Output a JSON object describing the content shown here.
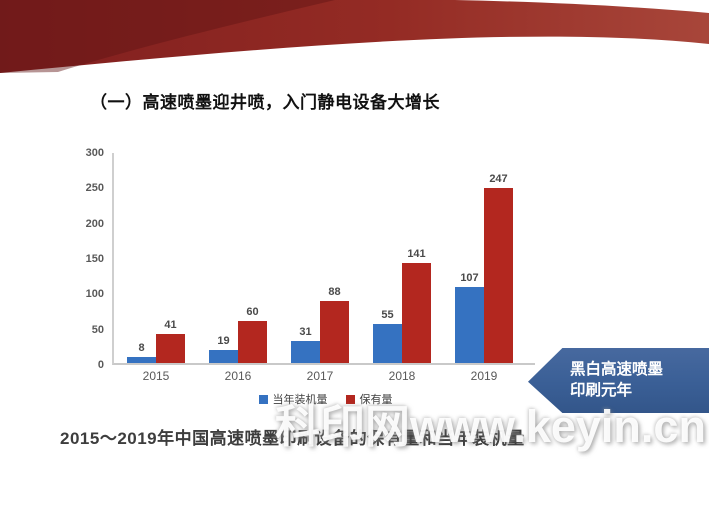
{
  "slide": {
    "title": "（一）高速喷墨迎井喷，入门静电设备大增长",
    "caption": "2015～2019年中国高速喷墨印刷设备的保有量和当年装机量",
    "watermark": "科印网www.keyin.cn",
    "banner": {
      "line1": "黑白高速喷墨",
      "line2": "印刷元年",
      "color": "#3a5f96"
    },
    "colors": {
      "header_red_dark": "#7e1e1e",
      "header_red_light": "#a43f32",
      "axis_gray": "#c9c9c9",
      "label_gray": "#595959"
    }
  },
  "chart_data": {
    "type": "bar",
    "categories": [
      "2015",
      "2016",
      "2017",
      "2018",
      "2019"
    ],
    "series": [
      {
        "name": "当年装机量",
        "color": "#3572c1",
        "values": [
          8,
          19,
          31,
          55,
          107
        ]
      },
      {
        "name": "保有量",
        "color": "#b3271f",
        "values": [
          41,
          60,
          88,
          141,
          247
        ]
      }
    ],
    "title": "",
    "xlabel": "",
    "ylabel": "",
    "ylim": [
      0,
      300
    ],
    "yticks": [
      0,
      50,
      100,
      150,
      200,
      250,
      300
    ],
    "grid": false,
    "legend_position": "bottom"
  }
}
